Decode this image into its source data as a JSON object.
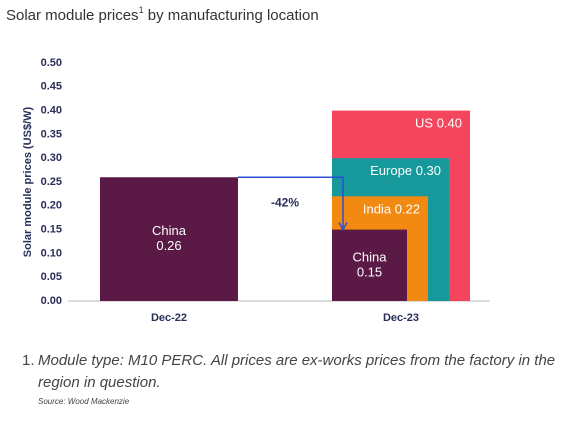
{
  "chart_data": {
    "type": "nested_bar",
    "title": "Solar module prices",
    "title_sup": "1",
    "title_rest": " by manufacturing location",
    "ylabel": "Solar module prices (US$/W)",
    "categories": [
      "Dec-22",
      "Dec-23"
    ],
    "series": [
      {
        "name": "US",
        "color": "#f5455c",
        "values": [
          null,
          0.4
        ],
        "value_labels": [
          null,
          "0.40"
        ]
      },
      {
        "name": "Europe",
        "color": "#17999b",
        "values": [
          null,
          0.3
        ],
        "value_labels": [
          null,
          "0.30"
        ]
      },
      {
        "name": "India",
        "color": "#f28a12",
        "values": [
          null,
          0.22
        ]
      },
      {
        "name": "China",
        "color": "#5a1a45",
        "values": [
          0.26,
          0.15
        ]
      }
    ],
    "ylim": [
      0,
      0.5
    ],
    "yticks": [
      {
        "value": 0,
        "label": "0.00"
      },
      0.05,
      {
        "value": 0.1,
        "label": "0.10"
      },
      0.15,
      {
        "value": 0.2,
        "label": "0.20"
      },
      0.25,
      {
        "value": 0.3,
        "label": "0.30"
      },
      0.35,
      {
        "value": 0.4,
        "label": "0.40"
      },
      0.45,
      {
        "value": 0.5,
        "label": "0.50"
      }
    ],
    "annotation": "-42%",
    "footnote_marker": "1.",
    "footnote": "Module type: M10 PERC. All prices are ex-works prices from the factory in the region in question.",
    "source": "Source: Wood Mackenzie"
  }
}
